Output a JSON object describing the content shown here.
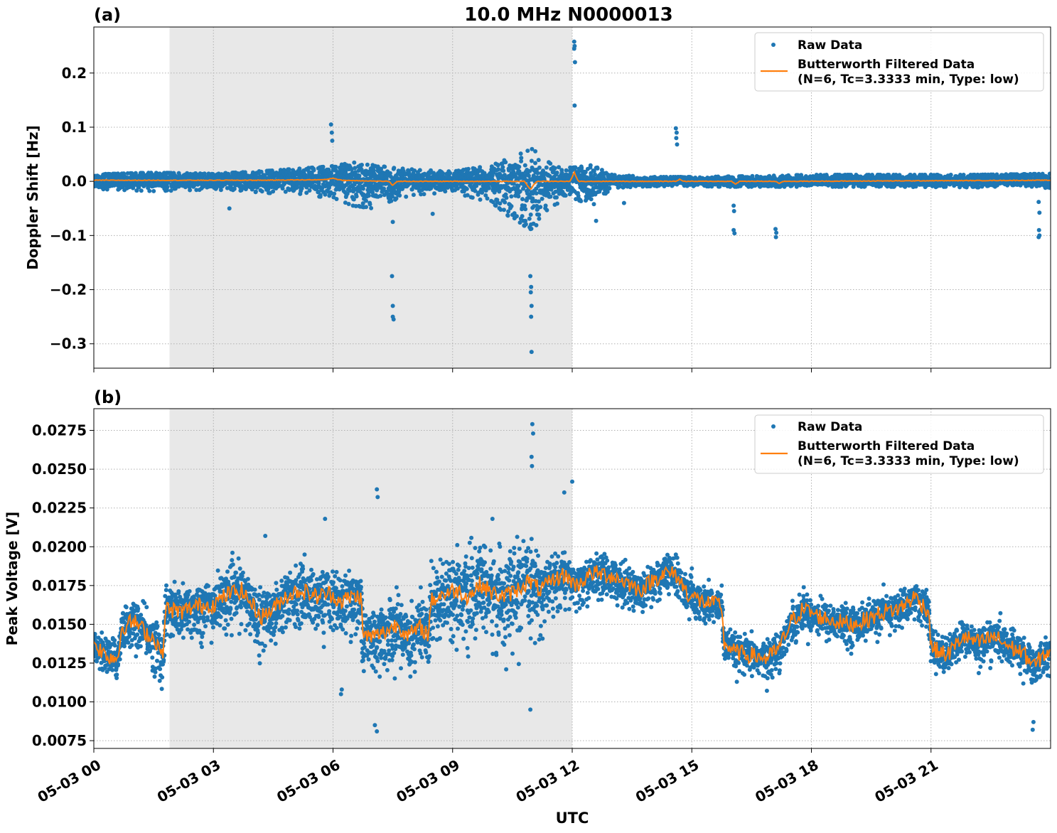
{
  "figure": {
    "title": "10.0 MHz N0000013",
    "xlabel": "UTC"
  },
  "legend": {
    "raw_label": "Raw Data",
    "filtered_label_line1": "Butterworth Filtered Data",
    "filtered_label_line2": "(N=6, Tc=3.3333 min, Type: low)"
  },
  "colors": {
    "raw": "#1f77b4",
    "filtered": "#ff7f0e",
    "shade": "#e8e8e8"
  },
  "chart_data": [
    {
      "type": "scatter",
      "panel_label": "(a)",
      "ylabel": "Doppler Shift [Hz]",
      "xlim_hours": [
        0,
        24
      ],
      "ylim": [
        -0.345,
        0.285
      ],
      "yticks": [
        0.2,
        0.1,
        0.0,
        -0.1,
        -0.2,
        -0.3
      ],
      "ytick_labels": [
        "0.2",
        "0.1",
        "0.0",
        "−0.1",
        "−0.2",
        "−0.3"
      ],
      "xticks_hours": [
        0,
        3,
        6,
        9,
        12,
        15,
        18,
        21
      ],
      "shaded_interval_hours": [
        1.9,
        12.0
      ],
      "grid": true,
      "legend_position": "top-right",
      "band_hours": [
        0,
        1.5,
        3,
        4.5,
        6,
        6.5,
        7,
        7.5,
        8,
        9,
        10,
        10.5,
        11,
        11.5,
        12,
        12.5,
        13,
        14,
        15,
        16,
        18,
        20,
        22,
        24
      ],
      "band_upper": [
        0.013,
        0.016,
        0.014,
        0.02,
        0.028,
        0.035,
        0.03,
        0.025,
        0.022,
        0.018,
        0.03,
        0.045,
        0.06,
        0.03,
        0.025,
        0.03,
        0.012,
        0.008,
        0.008,
        0.009,
        0.012,
        0.012,
        0.012,
        0.014
      ],
      "band_lower": [
        -0.014,
        -0.018,
        -0.015,
        -0.022,
        -0.03,
        -0.045,
        -0.05,
        -0.035,
        -0.025,
        -0.02,
        -0.04,
        -0.07,
        -0.09,
        -0.045,
        -0.03,
        -0.045,
        -0.012,
        -0.009,
        -0.009,
        -0.01,
        -0.01,
        -0.01,
        -0.011,
        -0.012
      ],
      "filtered_points": [
        [
          0,
          0.002
        ],
        [
          4,
          0.002
        ],
        [
          5.8,
          0.003
        ],
        [
          6,
          0.006
        ],
        [
          6.2,
          0.002
        ],
        [
          7.4,
          0.0
        ],
        [
          7.5,
          -0.008
        ],
        [
          7.6,
          0.0
        ],
        [
          10.8,
          0.0
        ],
        [
          10.95,
          -0.015
        ],
        [
          11.1,
          0.0
        ],
        [
          11.95,
          0.0
        ],
        [
          12.05,
          0.017
        ],
        [
          12.15,
          0.0
        ],
        [
          14.6,
          0.0
        ],
        [
          14.7,
          0.004
        ],
        [
          14.8,
          0.0
        ],
        [
          16,
          0.0
        ],
        [
          16.1,
          -0.005
        ],
        [
          16.2,
          0.0
        ],
        [
          17.1,
          0.0
        ],
        [
          17.2,
          -0.004
        ],
        [
          17.3,
          0.0
        ],
        [
          24,
          0.002
        ]
      ],
      "outliers": [
        [
          5.95,
          0.105
        ],
        [
          5.97,
          0.09
        ],
        [
          5.98,
          0.075
        ],
        [
          7.48,
          -0.175
        ],
        [
          7.5,
          -0.23
        ],
        [
          7.5,
          -0.25
        ],
        [
          7.52,
          -0.255
        ],
        [
          7.5,
          -0.075
        ],
        [
          10.95,
          -0.175
        ],
        [
          10.97,
          -0.195
        ],
        [
          10.96,
          -0.205
        ],
        [
          10.98,
          -0.23
        ],
        [
          10.97,
          -0.25
        ],
        [
          10.98,
          -0.315
        ],
        [
          12.05,
          0.258
        ],
        [
          12.06,
          0.25
        ],
        [
          12.05,
          0.245
        ],
        [
          12.07,
          0.22
        ],
        [
          12.06,
          0.14
        ],
        [
          14.6,
          0.098
        ],
        [
          14.62,
          0.09
        ],
        [
          14.61,
          0.08
        ],
        [
          14.63,
          0.068
        ],
        [
          16.05,
          -0.045
        ],
        [
          16.06,
          -0.055
        ],
        [
          16.05,
          -0.09
        ],
        [
          16.07,
          -0.096
        ],
        [
          17.1,
          -0.088
        ],
        [
          17.12,
          -0.095
        ],
        [
          17.11,
          -0.103
        ],
        [
          23.7,
          -0.038
        ],
        [
          23.72,
          -0.058
        ],
        [
          23.71,
          -0.09
        ],
        [
          23.72,
          -0.1
        ],
        [
          23.7,
          -0.103
        ],
        [
          12.6,
          -0.073
        ],
        [
          8.5,
          -0.06
        ],
        [
          3.4,
          -0.05
        ],
        [
          13.3,
          -0.04
        ]
      ]
    },
    {
      "type": "scatter",
      "panel_label": "(b)",
      "ylabel": "Peak Voltage [V]",
      "xlim_hours": [
        0,
        24
      ],
      "ylim": [
        0.007,
        0.0289
      ],
      "yticks": [
        0.0275,
        0.025,
        0.0225,
        0.02,
        0.0175,
        0.015,
        0.0125,
        0.01,
        0.0075
      ],
      "ytick_labels": [
        "0.0275",
        "0.0250",
        "0.0225",
        "0.0200",
        "0.0175",
        "0.0150",
        "0.0125",
        "0.0100",
        "0.0075"
      ],
      "xticks_hours": [
        0,
        3,
        6,
        9,
        12,
        15,
        18,
        21
      ],
      "xtick_labels": [
        "05-03 00",
        "05-03 03",
        "05-03 06",
        "05-03 09",
        "05-03 12",
        "05-03 15",
        "05-03 18",
        "05-03 21"
      ],
      "shaded_interval_hours": [
        1.9,
        12.0
      ],
      "grid": true,
      "legend_position": "top-right",
      "filtered_points": [
        [
          0,
          0.0138
        ],
        [
          0.3,
          0.013
        ],
        [
          0.6,
          0.0128
        ],
        [
          0.7,
          0.0148
        ],
        [
          1.0,
          0.0152
        ],
        [
          1.3,
          0.0145
        ],
        [
          1.6,
          0.0138
        ],
        [
          1.72,
          0.0128
        ],
        [
          1.8,
          0.016
        ],
        [
          2.2,
          0.0158
        ],
        [
          2.6,
          0.0162
        ],
        [
          3.0,
          0.0163
        ],
        [
          3.4,
          0.017
        ],
        [
          3.7,
          0.0172
        ],
        [
          3.9,
          0.0165
        ],
        [
          4.2,
          0.0155
        ],
        [
          4.5,
          0.016
        ],
        [
          4.8,
          0.0168
        ],
        [
          5.2,
          0.0172
        ],
        [
          5.6,
          0.0168
        ],
        [
          5.9,
          0.017
        ],
        [
          6.2,
          0.0165
        ],
        [
          6.5,
          0.0168
        ],
        [
          6.7,
          0.0168
        ],
        [
          6.75,
          0.0143
        ],
        [
          7.0,
          0.0142
        ],
        [
          7.3,
          0.0145
        ],
        [
          7.6,
          0.015
        ],
        [
          7.9,
          0.0143
        ],
        [
          8.2,
          0.0148
        ],
        [
          8.4,
          0.0143
        ],
        [
          8.45,
          0.0165
        ],
        [
          8.8,
          0.017
        ],
        [
          9.1,
          0.0172
        ],
        [
          9.4,
          0.0168
        ],
        [
          9.7,
          0.0176
        ],
        [
          10.0,
          0.017
        ],
        [
          10.3,
          0.0168
        ],
        [
          10.6,
          0.0172
        ],
        [
          10.9,
          0.0178
        ],
        [
          11.2,
          0.0172
        ],
        [
          11.5,
          0.0178
        ],
        [
          11.8,
          0.0182
        ],
        [
          12.1,
          0.0175
        ],
        [
          12.5,
          0.0183
        ],
        [
          12.9,
          0.0182
        ],
        [
          13.3,
          0.0178
        ],
        [
          13.7,
          0.0172
        ],
        [
          14.0,
          0.0178
        ],
        [
          14.3,
          0.0183
        ],
        [
          14.6,
          0.0182
        ],
        [
          14.9,
          0.017
        ],
        [
          15.2,
          0.0165
        ],
        [
          15.5,
          0.0163
        ],
        [
          15.75,
          0.0163
        ],
        [
          15.8,
          0.0138
        ],
        [
          16.1,
          0.0132
        ],
        [
          16.5,
          0.013
        ],
        [
          16.9,
          0.0128
        ],
        [
          17.2,
          0.0135
        ],
        [
          17.5,
          0.0152
        ],
        [
          17.8,
          0.016
        ],
        [
          18.2,
          0.0155
        ],
        [
          18.6,
          0.0152
        ],
        [
          19.0,
          0.015
        ],
        [
          19.4,
          0.0153
        ],
        [
          19.8,
          0.0158
        ],
        [
          20.2,
          0.016
        ],
        [
          20.6,
          0.0168
        ],
        [
          20.95,
          0.0158
        ],
        [
          21.0,
          0.0135
        ],
        [
          21.4,
          0.013
        ],
        [
          21.8,
          0.0142
        ],
        [
          22.2,
          0.0138
        ],
        [
          22.6,
          0.0142
        ],
        [
          23.0,
          0.0135
        ],
        [
          23.3,
          0.0132
        ],
        [
          23.6,
          0.0123
        ],
        [
          23.8,
          0.013
        ],
        [
          24.0,
          0.0133
        ]
      ],
      "spread_low": [
        [
          0,
          0.0012
        ],
        [
          1.8,
          0.0022
        ],
        [
          6.7,
          0.0025
        ],
        [
          8.45,
          0.0028
        ],
        [
          10.5,
          0.0038
        ],
        [
          12.0,
          0.0018
        ],
        [
          15.8,
          0.0014
        ],
        [
          24,
          0.0014
        ]
      ],
      "spread_high": [
        [
          0,
          0.0011
        ],
        [
          1.8,
          0.0016
        ],
        [
          6.7,
          0.0016
        ],
        [
          8.45,
          0.0022
        ],
        [
          10.5,
          0.0028
        ],
        [
          12.0,
          0.0012
        ],
        [
          15.8,
          0.0011
        ],
        [
          24,
          0.0011
        ]
      ],
      "outliers": [
        [
          7.1,
          0.0237
        ],
        [
          7.12,
          0.0232
        ],
        [
          7.05,
          0.0085
        ],
        [
          7.1,
          0.0081
        ],
        [
          6.2,
          0.0105
        ],
        [
          6.22,
          0.0108
        ],
        [
          11.0,
          0.0279
        ],
        [
          11.02,
          0.0273
        ],
        [
          10.98,
          0.0258
        ],
        [
          10.99,
          0.0252
        ],
        [
          10.95,
          0.0095
        ],
        [
          12.0,
          0.0242
        ],
        [
          11.8,
          0.0235
        ],
        [
          14.6,
          0.0195
        ],
        [
          15.0,
          0.0186
        ],
        [
          23.55,
          0.0082
        ],
        [
          23.57,
          0.0087
        ],
        [
          10.0,
          0.0218
        ],
        [
          5.8,
          0.0218
        ],
        [
          4.3,
          0.0207
        ]
      ]
    }
  ]
}
